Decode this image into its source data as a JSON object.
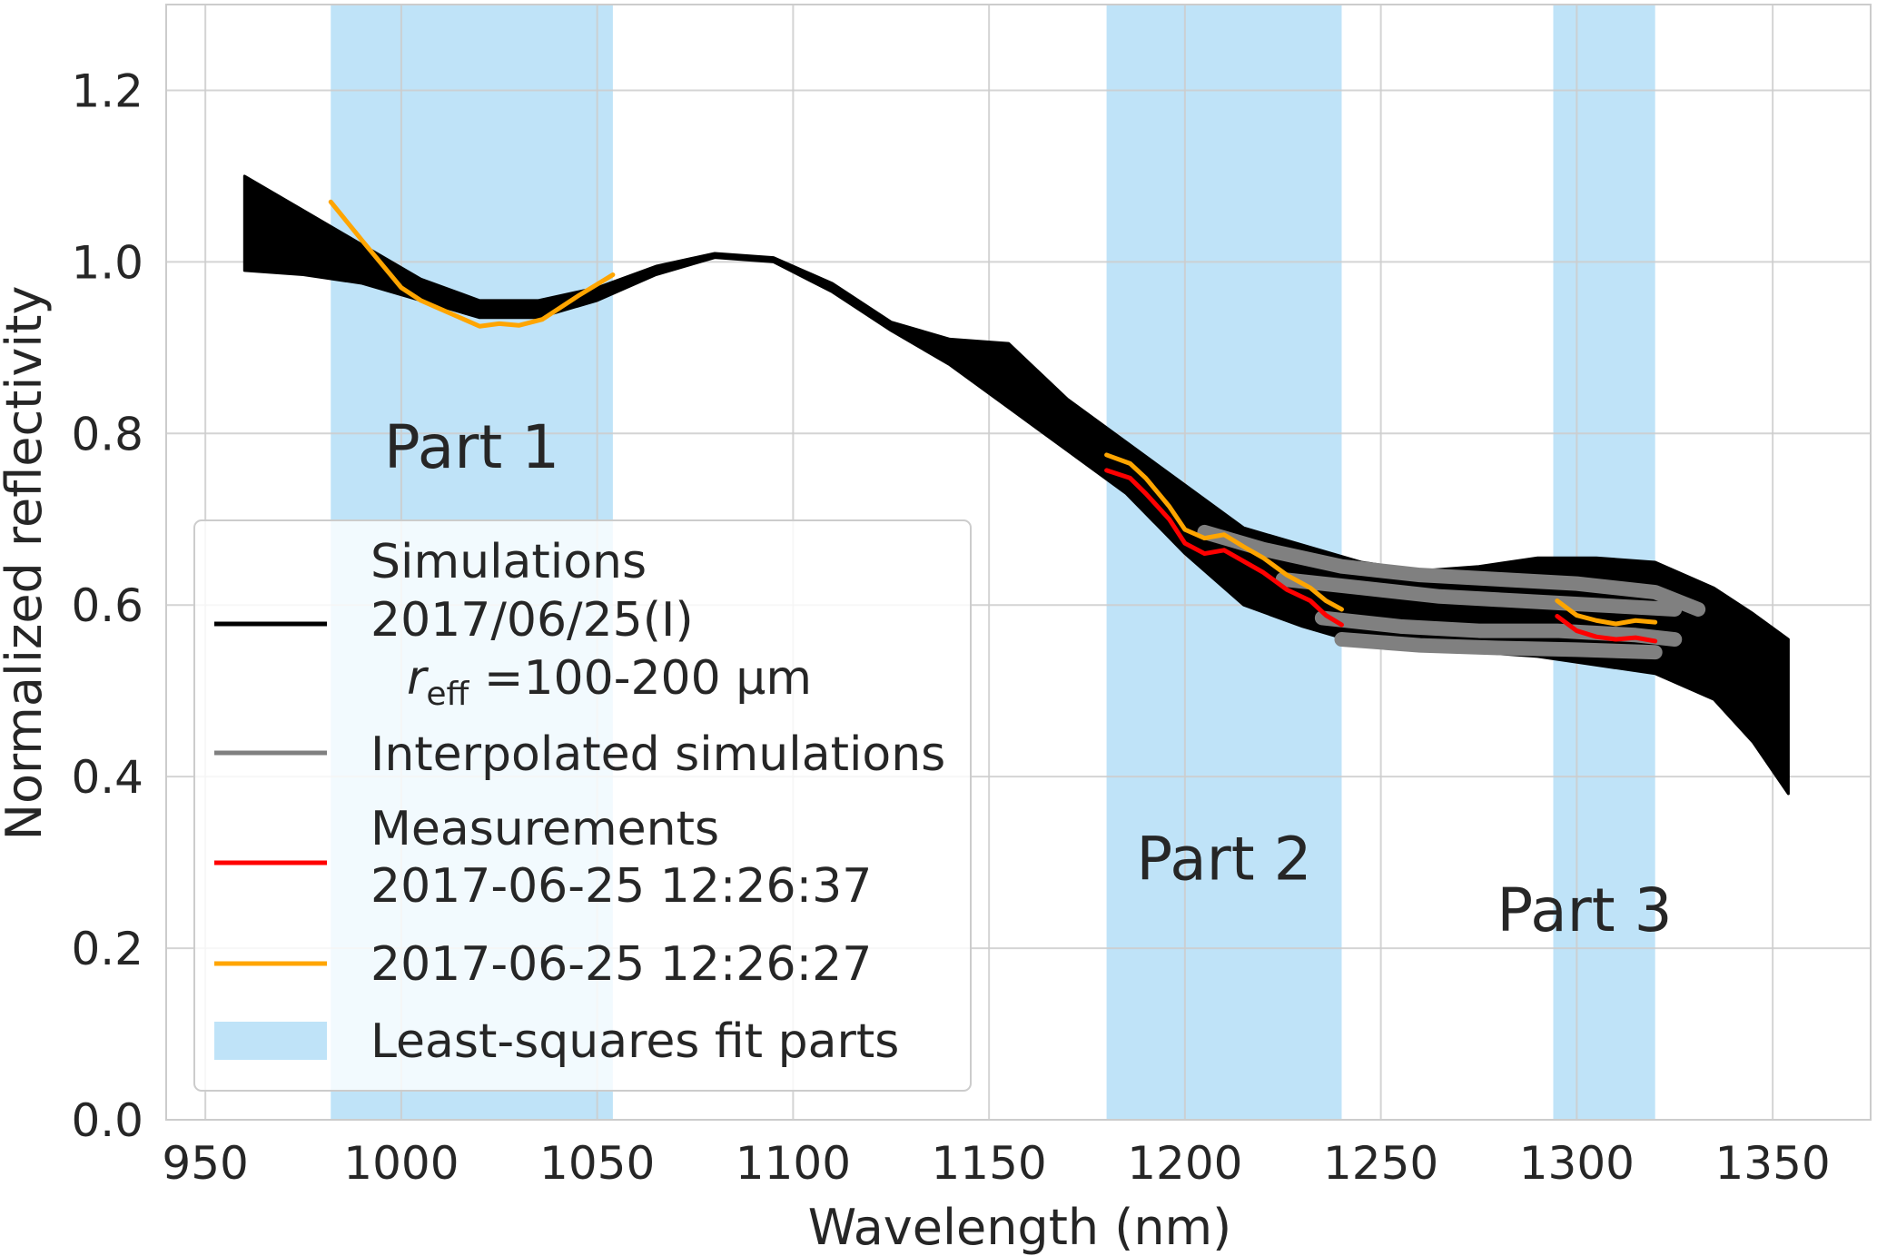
{
  "chart_data": {
    "type": "line",
    "xlabel": "Wavelength (nm)",
    "ylabel": "Normalized reflectivity",
    "xlim": [
      940,
      1375
    ],
    "ylim": [
      0.0,
      1.3
    ],
    "xticks": [
      950,
      1000,
      1050,
      1100,
      1150,
      1200,
      1250,
      1300,
      1350
    ],
    "yticks": [
      0.0,
      0.2,
      0.4,
      0.6,
      0.8,
      1.0,
      1.2
    ],
    "grid": true,
    "legend_position": "lower-left",
    "shaded_regions": [
      {
        "label": "Part 1",
        "x": [
          982,
          1054
        ]
      },
      {
        "label": "Part 2",
        "x": [
          1180,
          1240
        ]
      },
      {
        "label": "Part 3",
        "x": [
          1294,
          1320
        ]
      }
    ],
    "simulations_band": {
      "x": [
        960,
        975,
        990,
        1005,
        1020,
        1035,
        1050,
        1065,
        1080,
        1095,
        1110,
        1125,
        1140,
        1155,
        1170,
        1185,
        1200,
        1215,
        1230,
        1245,
        1260,
        1275,
        1290,
        1305,
        1320,
        1335,
        1345,
        1354
      ],
      "upper": [
        1.1,
        1.06,
        1.02,
        0.98,
        0.955,
        0.955,
        0.97,
        0.995,
        1.01,
        1.005,
        0.975,
        0.93,
        0.91,
        0.905,
        0.84,
        0.79,
        0.74,
        0.69,
        0.67,
        0.65,
        0.64,
        0.645,
        0.655,
        0.655,
        0.65,
        0.62,
        0.59,
        0.56
      ],
      "lower": [
        0.99,
        0.985,
        0.975,
        0.955,
        0.935,
        0.935,
        0.955,
        0.985,
        1.005,
        1.0,
        0.965,
        0.92,
        0.88,
        0.83,
        0.78,
        0.73,
        0.66,
        0.6,
        0.575,
        0.555,
        0.55,
        0.545,
        0.54,
        0.53,
        0.52,
        0.49,
        0.44,
        0.38
      ]
    },
    "interpolated_curves": [
      {
        "x": [
          1205,
          1220,
          1240,
          1260,
          1280,
          1300,
          1320,
          1331
        ],
        "y": [
          0.685,
          0.665,
          0.645,
          0.635,
          0.63,
          0.625,
          0.615,
          0.595
        ]
      },
      {
        "x": [
          1225,
          1245,
          1265,
          1285,
          1305,
          1325
        ],
        "y": [
          0.63,
          0.62,
          0.61,
          0.605,
          0.6,
          0.595
        ]
      },
      {
        "x": [
          1235,
          1255,
          1275,
          1295,
          1315,
          1325
        ],
        "y": [
          0.585,
          0.575,
          0.57,
          0.57,
          0.565,
          0.56
        ]
      },
      {
        "x": [
          1240,
          1260,
          1280,
          1300,
          1320
        ],
        "y": [
          0.56,
          0.553,
          0.55,
          0.548,
          0.545
        ]
      }
    ],
    "series": [
      {
        "name": "2017-06-25 12:26:37",
        "color": "#ff0000",
        "segments": [
          {
            "x": [
              1180,
              1186,
              1190,
              1196,
              1200,
              1205,
              1210,
              1215,
              1220,
              1226,
              1232,
              1236,
              1240
            ],
            "y": [
              0.757,
              0.748,
              0.73,
              0.7,
              0.672,
              0.66,
              0.664,
              0.651,
              0.638,
              0.618,
              0.605,
              0.588,
              0.577
            ]
          },
          {
            "x": [
              1295,
              1300,
              1305,
              1310,
              1315,
              1320
            ],
            "y": [
              0.587,
              0.57,
              0.563,
              0.56,
              0.562,
              0.558
            ]
          }
        ]
      },
      {
        "name": "2017-06-25 12:26:27",
        "color": "#ffa500",
        "segments": [
          {
            "x": [
              982,
              990,
              1000,
              1005,
              1010,
              1020,
              1025,
              1030,
              1036,
              1045,
              1054
            ],
            "y": [
              1.07,
              1.025,
              0.97,
              0.955,
              0.945,
              0.925,
              0.928,
              0.926,
              0.933,
              0.96,
              0.985
            ]
          },
          {
            "x": [
              1180,
              1186,
              1190,
              1196,
              1200,
              1205,
              1210,
              1215,
              1220,
              1226,
              1232,
              1236,
              1240
            ],
            "y": [
              0.775,
              0.765,
              0.748,
              0.715,
              0.688,
              0.678,
              0.682,
              0.668,
              0.655,
              0.635,
              0.62,
              0.605,
              0.595
            ]
          },
          {
            "x": [
              1295,
              1300,
              1305,
              1310,
              1315,
              1320
            ],
            "y": [
              0.605,
              0.588,
              0.582,
              0.578,
              0.582,
              0.58
            ]
          }
        ]
      }
    ],
    "legend": {
      "simulations": {
        "line1": "Simulations",
        "line2": "2017/06/25(I)",
        "reff_symbol": "r",
        "reff_sub": "eff",
        "reff_range": " =100-200 μm",
        "color": "#000000"
      },
      "interpolated": {
        "label": "Interpolated simulations",
        "color": "#808080"
      },
      "measurements": {
        "line1": "Measurements",
        "line2": "2017-06-25 12:26:37",
        "color": "#ff0000"
      },
      "measurement2": {
        "label": "2017-06-25 12:26:27",
        "color": "#ffa500"
      },
      "fitparts": {
        "label": "Least-squares fit parts",
        "color": "#bfe3f8"
      }
    }
  }
}
